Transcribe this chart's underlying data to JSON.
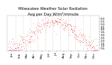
{
  "title": "Milwaukee Weather Solar Radiation",
  "subtitle": "Avg per Day W/m²/minute",
  "bg_color": "#ffffff",
  "plot_bg": "#ffffff",
  "grid_color": "#c8c8c8",
  "red_color": "#ff0000",
  "black_color": "#000000",
  "ylim": [
    0,
    6.5
  ],
  "yticks": [
    0.5,
    1.0,
    1.5,
    2.0,
    2.5,
    3.0,
    3.5,
    4.0,
    4.5,
    5.0,
    5.5,
    6.0
  ],
  "month_labels": [
    "Jan",
    "Feb",
    "Mar",
    "Apr",
    "May",
    "Jun",
    "Jul",
    "Aug",
    "Sep",
    "Oct",
    "Nov",
    "Dec"
  ],
  "title_fontsize": 4.0,
  "subtitle_fontsize": 3.2,
  "tick_fontsize": 3.0
}
